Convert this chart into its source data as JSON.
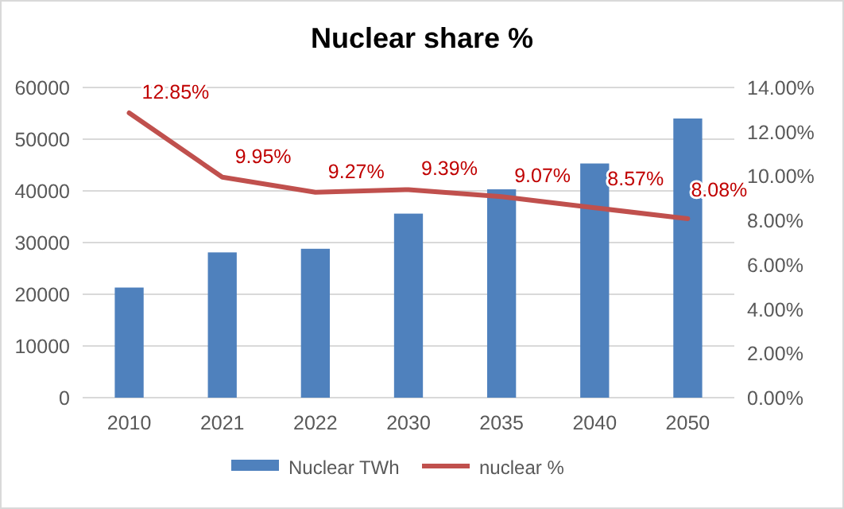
{
  "chart_data": {
    "type": "bar",
    "title": "Nuclear share %",
    "categories": [
      "2010",
      "2021",
      "2022",
      "2030",
      "2035",
      "2040",
      "2050"
    ],
    "series": [
      {
        "name": "Nuclear TWh",
        "color": "#4f81bd",
        "values": [
          21300,
          28100,
          28800,
          35600,
          40300,
          45300,
          54000
        ]
      },
      {
        "name": "nuclear %",
        "type": "line",
        "axis": "y2",
        "color": "#c0504d",
        "values": [
          12.85,
          9.95,
          9.27,
          9.39,
          9.07,
          8.57,
          8.08
        ],
        "value_labels": [
          "12.85%",
          "9.95%",
          "9.27%",
          "9.39%",
          "9.07%",
          "8.57%",
          "8.08%"
        ]
      }
    ],
    "ylim": [
      0,
      60000
    ],
    "yticks": [
      0,
      10000,
      20000,
      30000,
      40000,
      50000,
      60000
    ],
    "y2lim": [
      0,
      14
    ],
    "y2ticks": [
      {
        "value": 0,
        "label": "0.00%"
      },
      {
        "value": 2,
        "label": "2.00%"
      },
      {
        "value": 4,
        "label": "4.00%"
      },
      {
        "value": 6,
        "label": "6.00%"
      },
      {
        "value": 8,
        "label": "8.00%"
      },
      {
        "value": 10,
        "label": "10.00%"
      },
      {
        "value": 12,
        "label": "12.00%"
      },
      {
        "value": 14,
        "label": "14.00%"
      }
    ],
    "grid": "y",
    "legend": "bottom",
    "marker": "none"
  }
}
